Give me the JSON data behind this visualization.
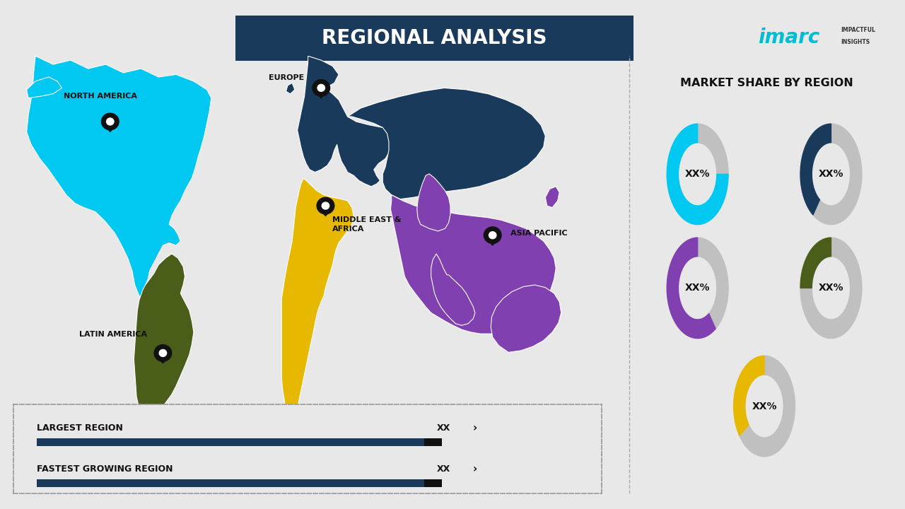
{
  "title": "REGIONAL ANALYSIS",
  "right_title": "MARKET SHARE BY REGION",
  "background_color": "#e8e8e8",
  "title_box_color": "#1a3a5c",
  "title_text_color": "#ffffff",
  "donut_charts": [
    {
      "color": "#00c8f0",
      "value": 0.75,
      "label": "XX%"
    },
    {
      "color": "#1a3a5c",
      "value": 0.4,
      "label": "XX%"
    },
    {
      "color": "#8040b0",
      "value": 0.6,
      "label": "XX%"
    },
    {
      "color": "#4a5e1a",
      "value": 0.25,
      "label": "XX%"
    },
    {
      "color": "#e6b800",
      "value": 0.35,
      "label": "XX%"
    }
  ],
  "donut_bg_color": "#c0c0c0",
  "legend_items": [
    {
      "label": "LARGEST REGION",
      "bar_color": "#1a3a5c",
      "value": "XX"
    },
    {
      "label": "FASTEST GROWING REGION",
      "bar_color": "#1a3a5c",
      "value": "XX"
    }
  ],
  "colors": {
    "north_america": "#00c8f0",
    "europe": "#1a3a5c",
    "asia_pacific": "#8040b0",
    "middle_east_africa": "#e6b800",
    "latin_america": "#4a5e1a"
  },
  "imarc_color": "#00bcd4"
}
